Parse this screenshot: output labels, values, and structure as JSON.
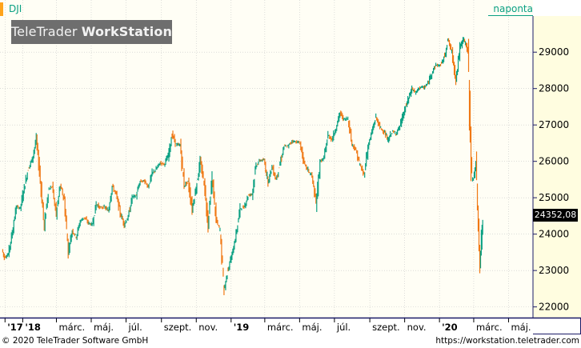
{
  "header": {
    "symbol": "DJI",
    "interval": "naponta",
    "brand_regular": "TeleTrader ",
    "brand_bold": "WorkStation"
  },
  "footer": {
    "copyright": "© 2020 TeleTrader Software GmbH",
    "url": "https://workstation.teletrader.com"
  },
  "colors": {
    "up": "#0aa082",
    "down": "#f07814",
    "grid": "#c8c8c8",
    "plot_background": "#fffef5",
    "axis_background": "#fffde0",
    "accent": "#ffa31a",
    "frame": "#1a1a66"
  },
  "chart_data": {
    "type": "candlestick",
    "last_value": "24352,08",
    "y_ticks": [
      22000,
      23000,
      24000,
      25000,
      26000,
      27000,
      28000,
      29000
    ],
    "y_tick_labels": [
      "22000",
      "23000",
      "24000",
      "25000",
      "26000",
      "27000",
      "28000",
      "29000"
    ],
    "ylim": [
      21750,
      29950
    ],
    "x_labels": [
      "'17",
      "'18",
      "márc.",
      "máj.",
      "júl.",
      "szept.",
      "nov.",
      "'19",
      "márc.",
      "máj.",
      "júl.",
      "szept.",
      "nov.",
      "'20",
      "márc.",
      "máj."
    ],
    "x_label_dates": [
      "2017-12-01",
      "2018-01-01",
      "2018-03-01",
      "2018-05-01",
      "2018-07-01",
      "2018-09-01",
      "2018-11-01",
      "2019-01-01",
      "2019-03-01",
      "2019-05-01",
      "2019-07-01",
      "2019-09-01",
      "2019-11-01",
      "2020-01-01",
      "2020-03-01",
      "2020-05-01"
    ],
    "xlim": [
      "2017-11-25",
      "2020-06-10"
    ],
    "series": [
      {
        "values": [
          [
            "2017-11-27",
            23580
          ],
          [
            "2017-12-01",
            23360
          ],
          [
            "2017-12-08",
            23450
          ],
          [
            "2017-12-15",
            24050
          ],
          [
            "2017-12-22",
            24750
          ],
          [
            "2017-12-29",
            24720
          ],
          [
            "2018-01-05",
            25290
          ],
          [
            "2018-01-12",
            25800
          ],
          [
            "2018-01-19",
            26070
          ],
          [
            "2018-01-26",
            26610
          ],
          [
            "2018-02-02",
            25520
          ],
          [
            "2018-02-09",
            24190
          ],
          [
            "2018-02-16",
            25220
          ],
          [
            "2018-02-23",
            25310
          ],
          [
            "2018-03-02",
            24540
          ],
          [
            "2018-03-09",
            25340
          ],
          [
            "2018-03-16",
            24950
          ],
          [
            "2018-03-23",
            23530
          ],
          [
            "2018-03-30",
            24100
          ],
          [
            "2018-04-06",
            23930
          ],
          [
            "2018-04-13",
            24360
          ],
          [
            "2018-04-20",
            24460
          ],
          [
            "2018-04-27",
            24310
          ],
          [
            "2018-05-04",
            24260
          ],
          [
            "2018-05-11",
            24830
          ],
          [
            "2018-05-18",
            24720
          ],
          [
            "2018-05-25",
            24750
          ],
          [
            "2018-06-01",
            24640
          ],
          [
            "2018-06-08",
            25320
          ],
          [
            "2018-06-15",
            25090
          ],
          [
            "2018-06-22",
            24580
          ],
          [
            "2018-06-29",
            24270
          ],
          [
            "2018-07-06",
            24460
          ],
          [
            "2018-07-13",
            25020
          ],
          [
            "2018-07-20",
            25060
          ],
          [
            "2018-07-27",
            25450
          ],
          [
            "2018-08-03",
            25460
          ],
          [
            "2018-08-10",
            25310
          ],
          [
            "2018-08-17",
            25670
          ],
          [
            "2018-08-24",
            25790
          ],
          [
            "2018-08-31",
            25960
          ],
          [
            "2018-09-07",
            25920
          ],
          [
            "2018-09-14",
            26150
          ],
          [
            "2018-09-21",
            26740
          ],
          [
            "2018-09-28",
            26460
          ],
          [
            "2018-10-05",
            26450
          ],
          [
            "2018-10-12",
            25340
          ],
          [
            "2018-10-19",
            25440
          ],
          [
            "2018-10-26",
            24690
          ],
          [
            "2018-11-02",
            25270
          ],
          [
            "2018-11-09",
            25990
          ],
          [
            "2018-11-16",
            25410
          ],
          [
            "2018-11-23",
            24290
          ],
          [
            "2018-11-30",
            25540
          ],
          [
            "2018-12-07",
            24390
          ],
          [
            "2018-12-14",
            24100
          ],
          [
            "2018-12-21",
            22450
          ],
          [
            "2018-12-28",
            23060
          ],
          [
            "2019-01-04",
            23430
          ],
          [
            "2019-01-11",
            23990
          ],
          [
            "2019-01-18",
            24710
          ],
          [
            "2019-01-25",
            24740
          ],
          [
            "2019-02-01",
            25060
          ],
          [
            "2019-02-08",
            25110
          ],
          [
            "2019-02-15",
            25880
          ],
          [
            "2019-02-22",
            26030
          ],
          [
            "2019-03-01",
            26030
          ],
          [
            "2019-03-08",
            25450
          ],
          [
            "2019-03-15",
            25850
          ],
          [
            "2019-03-22",
            25500
          ],
          [
            "2019-03-29",
            25930
          ],
          [
            "2019-04-05",
            26420
          ],
          [
            "2019-04-12",
            26410
          ],
          [
            "2019-04-19",
            26560
          ],
          [
            "2019-04-26",
            26540
          ],
          [
            "2019-05-03",
            26500
          ],
          [
            "2019-05-10",
            25940
          ],
          [
            "2019-05-17",
            25760
          ],
          [
            "2019-05-24",
            25590
          ],
          [
            "2019-05-31",
            24820
          ],
          [
            "2019-06-07",
            25980
          ],
          [
            "2019-06-14",
            26090
          ],
          [
            "2019-06-21",
            26720
          ],
          [
            "2019-06-28",
            26600
          ],
          [
            "2019-07-05",
            26920
          ],
          [
            "2019-07-12",
            27330
          ],
          [
            "2019-07-19",
            27150
          ],
          [
            "2019-07-26",
            27190
          ],
          [
            "2019-08-02",
            26490
          ],
          [
            "2019-08-09",
            26290
          ],
          [
            "2019-08-16",
            25890
          ],
          [
            "2019-08-23",
            25630
          ],
          [
            "2019-08-30",
            26400
          ],
          [
            "2019-09-06",
            26800
          ],
          [
            "2019-09-13",
            27220
          ],
          [
            "2019-09-20",
            26930
          ],
          [
            "2019-09-27",
            26820
          ],
          [
            "2019-10-04",
            26570
          ],
          [
            "2019-10-11",
            26820
          ],
          [
            "2019-10-18",
            26770
          ],
          [
            "2019-10-25",
            26960
          ],
          [
            "2019-11-01",
            27340
          ],
          [
            "2019-11-08",
            27680
          ],
          [
            "2019-11-15",
            28000
          ],
          [
            "2019-11-22",
            27880
          ],
          [
            "2019-11-29",
            28050
          ],
          [
            "2019-12-06",
            28020
          ],
          [
            "2019-12-13",
            28140
          ],
          [
            "2019-12-20",
            28450
          ],
          [
            "2019-12-27",
            28650
          ],
          [
            "2020-01-03",
            28630
          ],
          [
            "2020-01-10",
            28820
          ],
          [
            "2020-01-17",
            29350
          ],
          [
            "2020-01-24",
            28990
          ],
          [
            "2020-01-31",
            28260
          ],
          [
            "2020-02-07",
            29100
          ],
          [
            "2020-02-14",
            29400
          ],
          [
            "2020-02-21",
            28990
          ],
          [
            "2020-02-28",
            25410
          ],
          [
            "2020-03-06",
            25860
          ],
          [
            "2020-03-13",
            23190
          ],
          [
            "2020-03-18",
            24352
          ]
        ]
      }
    ]
  }
}
